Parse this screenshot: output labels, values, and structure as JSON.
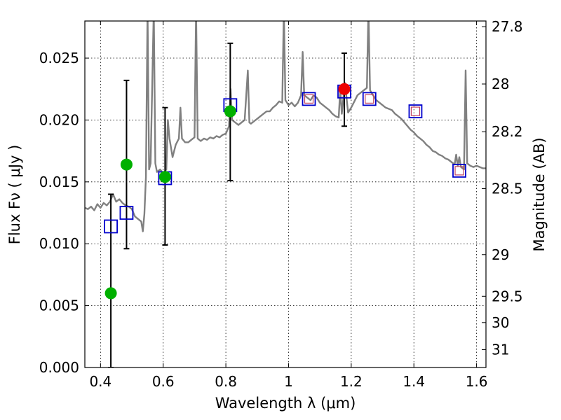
{
  "chart_data": {
    "type": "scatter",
    "xlabel": "Wavelength  λ (μm)",
    "ylabel": "Flux  Fν  ( μJy )",
    "ylabel_right": "Magnitude (AB)",
    "xlim": [
      0.35,
      1.63
    ],
    "ylim": [
      0.0,
      0.028
    ],
    "grid": true,
    "x_ticks": [
      {
        "value": 0.4,
        "label": "0.4"
      },
      {
        "value": 0.6,
        "label": "0.6"
      },
      {
        "value": 0.8,
        "label": "0.8"
      },
      {
        "value": 1.0,
        "label": "1"
      },
      {
        "value": 1.2,
        "label": "1.2"
      },
      {
        "value": 1.4,
        "label": "1.4"
      },
      {
        "value": 1.6,
        "label": "1.6"
      }
    ],
    "y_ticks": [
      {
        "value": 0.0,
        "label": "0.000"
      },
      {
        "value": 0.005,
        "label": "0.005"
      },
      {
        "value": 0.01,
        "label": "0.010"
      },
      {
        "value": 0.015,
        "label": "0.015"
      },
      {
        "value": 0.02,
        "label": "0.020"
      },
      {
        "value": 0.025,
        "label": "0.025"
      }
    ],
    "right_ticks": [
      {
        "mag": 27.8,
        "label": "27.8"
      },
      {
        "mag": 28.0,
        "label": "28"
      },
      {
        "mag": 28.2,
        "label": "28.2"
      },
      {
        "mag": 28.5,
        "label": "28.5"
      },
      {
        "mag": 29.0,
        "label": "29"
      },
      {
        "mag": 29.5,
        "label": "29.5"
      },
      {
        "mag": 30.0,
        "label": "30"
      },
      {
        "mag": 31.0,
        "label": "31"
      }
    ],
    "series": [
      {
        "kind": "line",
        "color": "#808080",
        "points": [
          [
            0.35,
            0.0129
          ],
          [
            0.36,
            0.0128
          ],
          [
            0.37,
            0.013
          ],
          [
            0.38,
            0.0127
          ],
          [
            0.39,
            0.0132
          ],
          [
            0.4,
            0.0129
          ],
          [
            0.41,
            0.0133
          ],
          [
            0.42,
            0.0131
          ],
          [
            0.43,
            0.0134
          ],
          [
            0.44,
            0.014
          ],
          [
            0.45,
            0.0134
          ],
          [
            0.46,
            0.0136
          ],
          [
            0.47,
            0.0133
          ],
          [
            0.48,
            0.0131
          ],
          [
            0.49,
            0.013
          ],
          [
            0.5,
            0.0128
          ],
          [
            0.51,
            0.0122
          ],
          [
            0.52,
            0.012
          ],
          [
            0.53,
            0.0118
          ],
          [
            0.535,
            0.011
          ],
          [
            0.54,
            0.0124
          ],
          [
            0.545,
            0.0154
          ],
          [
            0.55,
            0.029
          ],
          [
            0.555,
            0.016
          ],
          [
            0.56,
            0.0165
          ],
          [
            0.57,
            0.029
          ],
          [
            0.575,
            0.0165
          ],
          [
            0.58,
            0.0158
          ],
          [
            0.59,
            0.016
          ],
          [
            0.6,
            0.0157
          ],
          [
            0.61,
            0.016
          ],
          [
            0.615,
            0.02
          ],
          [
            0.62,
            0.0185
          ],
          [
            0.63,
            0.017
          ],
          [
            0.64,
            0.018
          ],
          [
            0.65,
            0.0185
          ],
          [
            0.655,
            0.021
          ],
          [
            0.66,
            0.0185
          ],
          [
            0.67,
            0.0182
          ],
          [
            0.68,
            0.0182
          ],
          [
            0.69,
            0.0184
          ],
          [
            0.7,
            0.0186
          ],
          [
            0.705,
            0.029
          ],
          [
            0.71,
            0.0185
          ],
          [
            0.72,
            0.0183
          ],
          [
            0.73,
            0.0185
          ],
          [
            0.74,
            0.0184
          ],
          [
            0.75,
            0.0186
          ],
          [
            0.76,
            0.0185
          ],
          [
            0.77,
            0.0187
          ],
          [
            0.78,
            0.0186
          ],
          [
            0.79,
            0.0188
          ],
          [
            0.8,
            0.0189
          ],
          [
            0.81,
            0.0195
          ],
          [
            0.815,
            0.0225
          ],
          [
            0.82,
            0.02
          ],
          [
            0.83,
            0.0198
          ],
          [
            0.84,
            0.0196
          ],
          [
            0.85,
            0.0198
          ],
          [
            0.86,
            0.02
          ],
          [
            0.87,
            0.024
          ],
          [
            0.875,
            0.0198
          ],
          [
            0.88,
            0.0197
          ],
          [
            0.89,
            0.0199
          ],
          [
            0.9,
            0.0201
          ],
          [
            0.91,
            0.0203
          ],
          [
            0.92,
            0.0205
          ],
          [
            0.93,
            0.0207
          ],
          [
            0.94,
            0.0207
          ],
          [
            0.95,
            0.021
          ],
          [
            0.96,
            0.0212
          ],
          [
            0.97,
            0.0215
          ],
          [
            0.98,
            0.0214
          ],
          [
            0.985,
            0.029
          ],
          [
            0.99,
            0.0216
          ],
          [
            1.0,
            0.0212
          ],
          [
            1.01,
            0.0214
          ],
          [
            1.02,
            0.0211
          ],
          [
            1.03,
            0.0214
          ],
          [
            1.04,
            0.022
          ],
          [
            1.045,
            0.0255
          ],
          [
            1.05,
            0.022
          ],
          [
            1.06,
            0.0218
          ],
          [
            1.07,
            0.0216
          ],
          [
            1.08,
            0.022
          ],
          [
            1.09,
            0.0218
          ],
          [
            1.1,
            0.0214
          ],
          [
            1.11,
            0.0212
          ],
          [
            1.12,
            0.021
          ],
          [
            1.13,
            0.0208
          ],
          [
            1.14,
            0.0205
          ],
          [
            1.15,
            0.0203
          ],
          [
            1.16,
            0.0202
          ],
          [
            1.165,
            0.0225
          ],
          [
            1.17,
            0.0205
          ],
          [
            1.18,
            0.023
          ],
          [
            1.19,
            0.0206
          ],
          [
            1.2,
            0.021
          ],
          [
            1.21,
            0.0215
          ],
          [
            1.22,
            0.022
          ],
          [
            1.23,
            0.0222
          ],
          [
            1.24,
            0.0224
          ],
          [
            1.25,
            0.0226
          ],
          [
            1.255,
            0.029
          ],
          [
            1.26,
            0.0224
          ],
          [
            1.27,
            0.022
          ],
          [
            1.28,
            0.0216
          ],
          [
            1.29,
            0.0214
          ],
          [
            1.3,
            0.0212
          ],
          [
            1.31,
            0.021
          ],
          [
            1.32,
            0.0209
          ],
          [
            1.33,
            0.0208
          ],
          [
            1.34,
            0.0205
          ],
          [
            1.35,
            0.0203
          ],
          [
            1.36,
            0.0201
          ],
          [
            1.37,
            0.0198
          ],
          [
            1.38,
            0.0195
          ],
          [
            1.39,
            0.0192
          ],
          [
            1.4,
            0.019
          ],
          [
            1.41,
            0.0187
          ],
          [
            1.42,
            0.0185
          ],
          [
            1.43,
            0.0183
          ],
          [
            1.44,
            0.018
          ],
          [
            1.45,
            0.0178
          ],
          [
            1.46,
            0.0175
          ],
          [
            1.47,
            0.0174
          ],
          [
            1.48,
            0.0172
          ],
          [
            1.49,
            0.0171
          ],
          [
            1.5,
            0.0169
          ],
          [
            1.51,
            0.0168
          ],
          [
            1.52,
            0.0166
          ],
          [
            1.53,
            0.0164
          ],
          [
            1.535,
            0.0172
          ],
          [
            1.54,
            0.0163
          ],
          [
            1.545,
            0.017
          ],
          [
            1.55,
            0.0162
          ],
          [
            1.56,
            0.016
          ],
          [
            1.565,
            0.024
          ],
          [
            1.57,
            0.0165
          ],
          [
            1.58,
            0.0163
          ],
          [
            1.59,
            0.0162
          ],
          [
            1.6,
            0.0163
          ],
          [
            1.61,
            0.0162
          ],
          [
            1.62,
            0.0161
          ],
          [
            1.63,
            0.0161
          ]
        ]
      },
      {
        "kind": "error_bars",
        "color": "#000000",
        "bars": [
          {
            "x": 0.433,
            "low": 0.0,
            "high": 0.014
          },
          {
            "x": 0.483,
            "low": 0.0096,
            "high": 0.0232
          },
          {
            "x": 0.606,
            "low": 0.0099,
            "high": 0.021
          },
          {
            "x": 0.814,
            "low": 0.0151,
            "high": 0.0262
          },
          {
            "x": 1.178,
            "low": 0.0195,
            "high": 0.0254
          }
        ]
      },
      {
        "kind": "marker",
        "marker": "square-open",
        "color": "#0000cc",
        "points": [
          [
            0.433,
            0.0114
          ],
          [
            0.483,
            0.0125
          ],
          [
            0.606,
            0.0153
          ],
          [
            0.814,
            0.0212
          ],
          [
            1.065,
            0.0217
          ],
          [
            1.178,
            0.0223
          ],
          [
            1.258,
            0.0217
          ],
          [
            1.405,
            0.0207
          ],
          [
            1.545,
            0.0159
          ]
        ]
      },
      {
        "kind": "marker",
        "marker": "square-small",
        "color": "#c04060",
        "points": [
          [
            1.065,
            0.0217
          ],
          [
            1.258,
            0.0217
          ],
          [
            1.405,
            0.0207
          ],
          [
            1.545,
            0.0159
          ]
        ]
      },
      {
        "kind": "marker",
        "marker": "circle",
        "color": "#00b000",
        "points": [
          [
            0.433,
            0.006
          ],
          [
            0.483,
            0.0164
          ],
          [
            0.606,
            0.0154
          ],
          [
            0.814,
            0.0207
          ]
        ]
      },
      {
        "kind": "marker",
        "marker": "circle",
        "color": "#ee0000",
        "points": [
          [
            1.178,
            0.0225
          ]
        ]
      }
    ]
  }
}
